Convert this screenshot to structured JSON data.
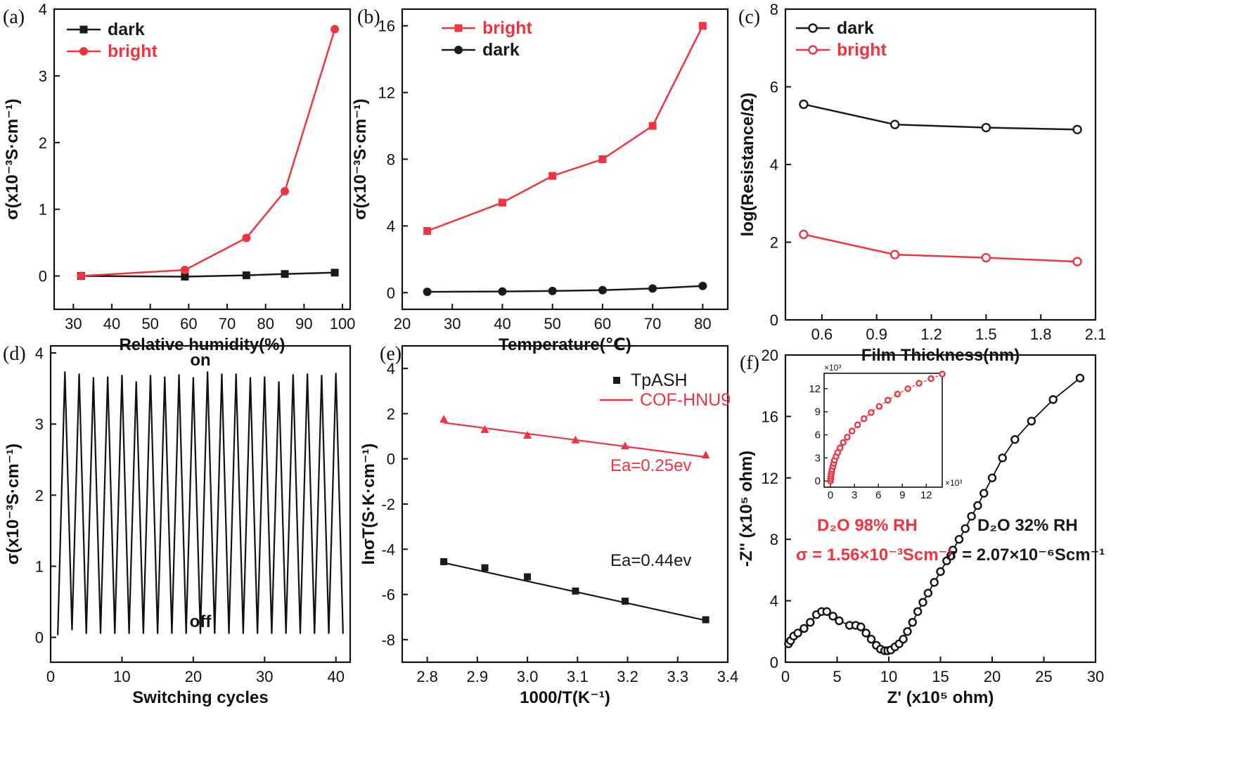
{
  "colors": {
    "black": "#1a1a1a",
    "red": "#f0333f",
    "axis": "#111111"
  },
  "chart_data": [
    {
      "id": "a",
      "panel_label": "(a)",
      "type": "line",
      "xlabel": "Relative humidity(%)",
      "ylabel": "σ(x10⁻³S·cm⁻¹)",
      "xlim": [
        25,
        102
      ],
      "ylim": [
        -0.5,
        4
      ],
      "xticks": [
        30,
        40,
        50,
        60,
        70,
        80,
        90,
        100
      ],
      "yticks": [
        0,
        1,
        2,
        3,
        4
      ],
      "legend_position": "top-left",
      "series": [
        {
          "name": "dark",
          "color": "black",
          "marker": "square",
          "x": [
            32,
            59,
            75,
            85,
            98
          ],
          "y": [
            0.0,
            -0.01,
            0.01,
            0.03,
            0.05
          ]
        },
        {
          "name": "bright",
          "color": "red",
          "marker": "circle",
          "x": [
            32,
            59,
            75,
            85,
            98
          ],
          "y": [
            0.0,
            0.09,
            0.57,
            1.27,
            3.7
          ]
        }
      ]
    },
    {
      "id": "b",
      "panel_label": "(b)",
      "type": "line",
      "xlabel": "Temperature(℃)",
      "ylabel": "σ(x10⁻³S·cm⁻¹)",
      "xlim": [
        20,
        85
      ],
      "ylim": [
        -1,
        17
      ],
      "xticks": [
        20,
        30,
        40,
        50,
        60,
        70,
        80
      ],
      "yticks": [
        0,
        4,
        8,
        12,
        16
      ],
      "legend_position": "top-left",
      "series": [
        {
          "name": "bright",
          "color": "red",
          "marker": "square",
          "x": [
            25,
            40,
            50,
            60,
            70,
            80
          ],
          "y": [
            3.7,
            5.4,
            7.0,
            8.0,
            10.0,
            16.0
          ]
        },
        {
          "name": "dark",
          "color": "black",
          "marker": "circle",
          "x": [
            25,
            40,
            50,
            60,
            70,
            80
          ],
          "y": [
            0.05,
            0.07,
            0.1,
            0.15,
            0.25,
            0.4
          ]
        }
      ]
    },
    {
      "id": "c",
      "panel_label": "(c)",
      "type": "line",
      "xlabel": "Film Thickness(nm)",
      "ylabel": "log(Resistance/Ω)",
      "xlim": [
        0.4,
        2.1
      ],
      "ylim": [
        0,
        8
      ],
      "xticks": [
        0.6,
        0.9,
        1.2,
        1.5,
        1.8,
        2.1
      ],
      "xticklabels": [
        "0.6",
        "0.9",
        "1.2",
        "1.5",
        "1.8",
        "2.1"
      ],
      "yticks": [
        0,
        2,
        4,
        6,
        8
      ],
      "legend_position": "top-left",
      "series": [
        {
          "name": "dark",
          "color": "black",
          "marker": "open-circle",
          "x": [
            0.5,
            1.0,
            1.5,
            2.0
          ],
          "y": [
            5.55,
            5.03,
            4.95,
            4.9
          ]
        },
        {
          "name": "bright",
          "color": "red",
          "marker": "open-circle",
          "x": [
            0.5,
            1.0,
            1.5,
            2.0
          ],
          "y": [
            2.2,
            1.68,
            1.6,
            1.5
          ]
        }
      ]
    },
    {
      "id": "d",
      "panel_label": "(d)",
      "type": "line",
      "xlabel": "Switching cycles",
      "ylabel": "σ(x10⁻³S·cm⁻¹)",
      "xlim": [
        0,
        42
      ],
      "ylim": [
        -0.35,
        4.1
      ],
      "xticks": [
        0,
        10,
        20,
        30,
        40
      ],
      "yticks": [
        0,
        1,
        2,
        3,
        4
      ],
      "annotations": {
        "top": "on",
        "bottom": "off"
      },
      "peaks": [
        3.74,
        3.71,
        3.66,
        3.67,
        3.69,
        3.6,
        3.69,
        3.67,
        3.7,
        3.66,
        3.74,
        3.71,
        3.71,
        3.66,
        3.67,
        3.6,
        3.7,
        3.71,
        3.69,
        3.72
      ],
      "troughs": [
        0.03,
        0.1,
        0.05,
        0.05,
        0.05,
        0.05,
        0.05,
        0.05,
        0.05,
        0.05,
        0.05,
        0.05,
        0.05,
        0.05,
        0.05,
        0.05,
        0.05,
        0.05,
        0.05,
        0.05,
        0.05
      ]
    },
    {
      "id": "e",
      "panel_label": "(e)",
      "type": "scatter",
      "xlabel": "1000/T(K⁻¹)",
      "ylabel": "lnσT(S·K·cm⁻¹)",
      "xlim": [
        2.75,
        3.4
      ],
      "ylim": [
        -9,
        5
      ],
      "xticks": [
        2.8,
        2.9,
        3.0,
        3.1,
        3.2,
        3.3,
        3.4
      ],
      "xticklabels": [
        "2.8",
        "2.9",
        "3.0",
        "3.1",
        "3.2",
        "3.3",
        "3.4"
      ],
      "yticks": [
        -8,
        -6,
        -4,
        -2,
        0,
        2,
        4
      ],
      "legend_position": "top-right",
      "series": [
        {
          "name": "TpASH",
          "color": "black",
          "marker": "square",
          "x": [
            2.833,
            2.915,
            3.0,
            3.096,
            3.195,
            3.356
          ],
          "y": [
            -4.55,
            -4.82,
            -5.22,
            -5.85,
            -6.3,
            -7.12
          ],
          "fit_label": "Ea=0.44ev",
          "fit": [
            [
              2.833,
              -4.6
            ],
            [
              3.356,
              -7.15
            ]
          ]
        },
        {
          "name": "COF-HNU9",
          "color": "red",
          "marker": "triangle",
          "x": [
            2.833,
            2.915,
            3.0,
            3.096,
            3.195,
            3.356
          ],
          "y": [
            1.76,
            1.3,
            1.05,
            0.84,
            0.58,
            0.17
          ],
          "fit_label": "Ea=0.25ev",
          "fit": [
            [
              2.833,
              1.6
            ],
            [
              3.356,
              0.08
            ]
          ]
        }
      ]
    },
    {
      "id": "f",
      "panel_label": "(f)",
      "type": "scatter",
      "xlabel": "Z' (x10⁵ ohm)",
      "ylabel": "-Z'' (x10⁵ ohm)",
      "xlim": [
        0,
        30
      ],
      "ylim": [
        0,
        20
      ],
      "xticks": [
        0,
        5,
        10,
        15,
        20,
        25,
        30
      ],
      "yticks": [
        0,
        4,
        8,
        12,
        16,
        20
      ],
      "labels": [
        {
          "text": "D₂O 32% RH",
          "color": "black"
        },
        {
          "text": "σ = 2.07×10⁻⁶Scm⁻¹",
          "color": "black"
        },
        {
          "text": "D₂O 98% RH",
          "color": "red"
        },
        {
          "text": "σ = 1.56×10⁻³Scm⁻¹",
          "color": "red"
        }
      ],
      "series": [
        {
          "name": "D₂O 32% RH",
          "color": "black",
          "marker": "open-circle",
          "x": [
            0.3,
            0.5,
            0.8,
            1.2,
            1.8,
            2.4,
            3.0,
            3.5,
            4.0,
            4.6,
            5.2,
            6.2,
            6.8,
            7.3,
            7.8,
            8.3,
            8.8,
            9.2,
            9.6,
            9.9,
            10.2,
            10.6,
            11.0,
            11.4,
            11.8,
            12.3,
            12.8,
            13.3,
            13.8,
            14.4,
            15.0,
            15.6,
            16.2,
            16.8,
            17.4,
            18.0,
            18.6,
            19.2,
            20.0,
            21.0,
            22.2,
            23.8,
            25.9,
            28.5
          ],
          "y": [
            1.2,
            1.4,
            1.7,
            1.9,
            2.2,
            2.6,
            3.1,
            3.3,
            3.3,
            3.0,
            2.7,
            2.4,
            2.4,
            2.3,
            1.9,
            1.5,
            1.1,
            0.85,
            0.75,
            0.75,
            0.8,
            1.0,
            1.2,
            1.5,
            2.0,
            2.6,
            3.3,
            3.9,
            4.5,
            5.2,
            5.9,
            6.6,
            7.3,
            8.0,
            8.7,
            9.5,
            10.2,
            11.0,
            12.0,
            13.3,
            14.5,
            15.7,
            17.1,
            18.5
          ]
        }
      ],
      "inset": {
        "x_multiplier": "×10³",
        "y_multiplier": "×10³",
        "xlim": [
          -0.8,
          14
        ],
        "ylim": [
          -0.8,
          14
        ],
        "xticks": [
          0,
          3,
          6,
          9,
          12
        ],
        "yticks": [
          0,
          3,
          6,
          9,
          12
        ],
        "x": [
          0.0,
          0.02,
          0.05,
          0.1,
          0.15,
          0.2,
          0.3,
          0.4,
          0.5,
          0.7,
          0.9,
          1.2,
          1.6,
          2.1,
          2.7,
          3.4,
          4.2,
          5.1,
          6.1,
          7.2,
          8.4,
          9.7,
          11.1,
          12.6,
          14.0
        ],
        "y": [
          0.0,
          0.3,
          0.6,
          0.9,
          1.2,
          1.5,
          1.9,
          2.3,
          2.7,
          3.2,
          3.7,
          4.3,
          5.0,
          5.7,
          6.5,
          7.3,
          8.1,
          8.9,
          9.7,
          10.5,
          11.3,
          12.0,
          12.7,
          13.3,
          13.9
        ]
      }
    }
  ]
}
